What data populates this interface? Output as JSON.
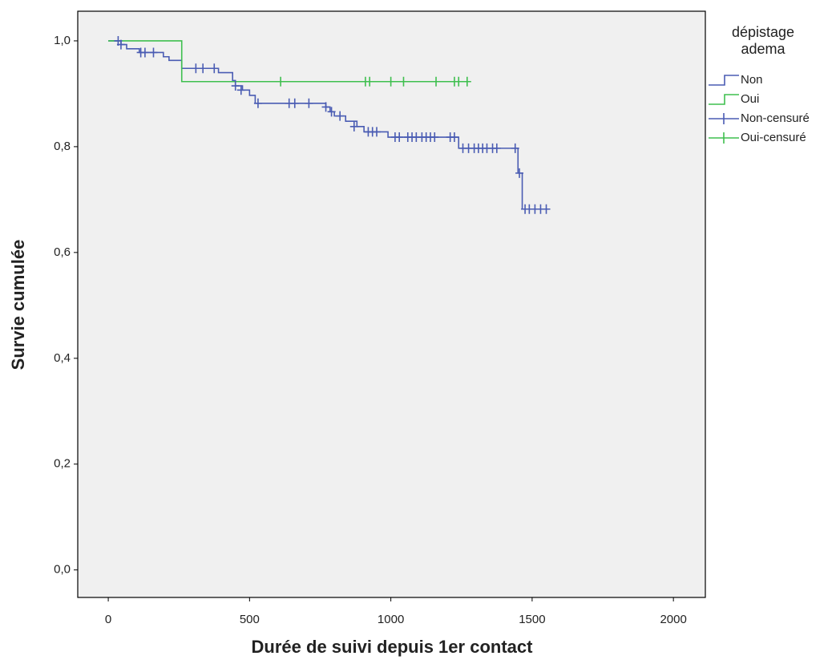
{
  "chart_data": {
    "type": "survival",
    "xlabel": "Durée de suivi depuis 1er contact",
    "ylabel": "Survie cumulée",
    "legend_title": "dépistage adema",
    "legend_position": "right",
    "xlim": [
      -108,
      2113
    ],
    "ylim": [
      -0.052,
      1.056
    ],
    "xticks": [
      0,
      500,
      1000,
      1500,
      2000
    ],
    "yticks": [
      {
        "value": 0,
        "label": "0,0"
      },
      {
        "value": 0.2,
        "label": "0,2"
      },
      {
        "value": 0.4,
        "label": "0,4"
      },
      {
        "value": 0.6,
        "label": "0,6"
      },
      {
        "value": 0.8,
        "label": "0,8"
      },
      {
        "value": 1.0,
        "label": "1,0"
      }
    ],
    "series": [
      {
        "name": "Non",
        "color": "#4a5cb3",
        "mark": "step",
        "x": [
          0,
          45,
          65,
          110,
          195,
          215,
          260,
          390,
          440,
          450,
          475,
          500,
          520,
          770,
          785,
          800,
          840,
          880,
          905,
          990,
          1240,
          1450,
          1465,
          1555
        ],
        "values": [
          1.0,
          0.993,
          0.985,
          0.978,
          0.97,
          0.963,
          0.948,
          0.94,
          0.925,
          0.915,
          0.907,
          0.897,
          0.882,
          0.875,
          0.866,
          0.858,
          0.848,
          0.838,
          0.828,
          0.818,
          0.797,
          0.75,
          0.682,
          0.682
        ]
      },
      {
        "name": "Oui",
        "color": "#3fbf4f",
        "mark": "step",
        "x": [
          0,
          260,
          1280
        ],
        "values": [
          1.0,
          0.923,
          0.923
        ]
      },
      {
        "name": "Non-censuré",
        "color": "#4a5cb3",
        "mark": "plus",
        "x": [
          35,
          45,
          115,
          130,
          160,
          310,
          335,
          375,
          450,
          470,
          530,
          640,
          660,
          710,
          770,
          790,
          820,
          870,
          920,
          935,
          950,
          1015,
          1030,
          1060,
          1075,
          1090,
          1110,
          1125,
          1140,
          1155,
          1210,
          1225,
          1255,
          1275,
          1295,
          1310,
          1325,
          1340,
          1360,
          1375,
          1440,
          1455,
          1475,
          1490,
          1510,
          1530,
          1550
        ],
        "values": [
          1.0,
          0.993,
          0.978,
          0.978,
          0.978,
          0.948,
          0.948,
          0.948,
          0.915,
          0.907,
          0.882,
          0.882,
          0.882,
          0.882,
          0.875,
          0.866,
          0.858,
          0.838,
          0.828,
          0.828,
          0.828,
          0.818,
          0.818,
          0.818,
          0.818,
          0.818,
          0.818,
          0.818,
          0.818,
          0.818,
          0.818,
          0.818,
          0.797,
          0.797,
          0.797,
          0.797,
          0.797,
          0.797,
          0.797,
          0.797,
          0.797,
          0.75,
          0.682,
          0.682,
          0.682,
          0.682,
          0.682
        ]
      },
      {
        "name": "Oui-censuré",
        "color": "#3fbf4f",
        "mark": "plus",
        "x": [
          610,
          910,
          925,
          1000,
          1045,
          1160,
          1225,
          1240,
          1270
        ],
        "values": [
          0.923,
          0.923,
          0.923,
          0.923,
          0.923,
          0.923,
          0.923,
          0.923,
          0.923
        ]
      }
    ]
  }
}
